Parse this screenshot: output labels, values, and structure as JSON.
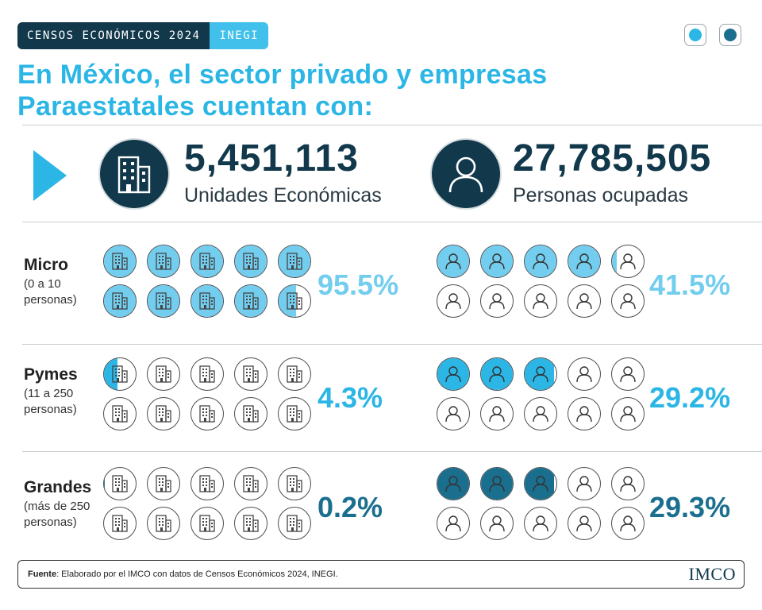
{
  "header": {
    "source_tag": "CENSOS ECONÓMICOS 2024",
    "org_tag": "INEGI"
  },
  "title": "En México, el sector privado y empresas Paraestatales cuentan con:",
  "totals": {
    "units": {
      "value": "5,451,113",
      "label": "Unidades Económicas",
      "icon": "building-icon"
    },
    "people": {
      "value": "27,785,505",
      "label": "Personas ocupadas",
      "icon": "person-icon"
    }
  },
  "rows": [
    {
      "name": "Micro",
      "subtitle": "(0 a 10 personas)",
      "units_pct_label": "95.5%",
      "units_pct": 95.5,
      "people_pct_label": "41.5%",
      "people_pct": 41.5,
      "color": "#73cdee",
      "pct_color": "#73cdee"
    },
    {
      "name": "Pymes",
      "subtitle": "(11 a 250 personas)",
      "units_pct_label": "4.3%",
      "units_pct": 4.3,
      "people_pct_label": "29.2%",
      "people_pct": 29.2,
      "color": "#2bb6e6",
      "pct_color": "#2bb6e6"
    },
    {
      "name": "Grandes",
      "subtitle": "(más de 250 personas)",
      "units_pct_label": "0.2%",
      "units_pct": 0.2,
      "people_pct_label": "29.3%",
      "people_pct": 29.3,
      "color": "#1a6f8e",
      "pct_color": "#1a6f8e"
    }
  ],
  "footer": {
    "label": "Fuente",
    "text": ": Elaborado por el IMCO con datos de Censos Económicos 2024, INEGI.",
    "logo": "IMCO"
  },
  "colors": {
    "navy": "#11384b",
    "cyan": "#2bb6e6",
    "light_cyan": "#73cdee",
    "teal": "#1a6f8e"
  }
}
